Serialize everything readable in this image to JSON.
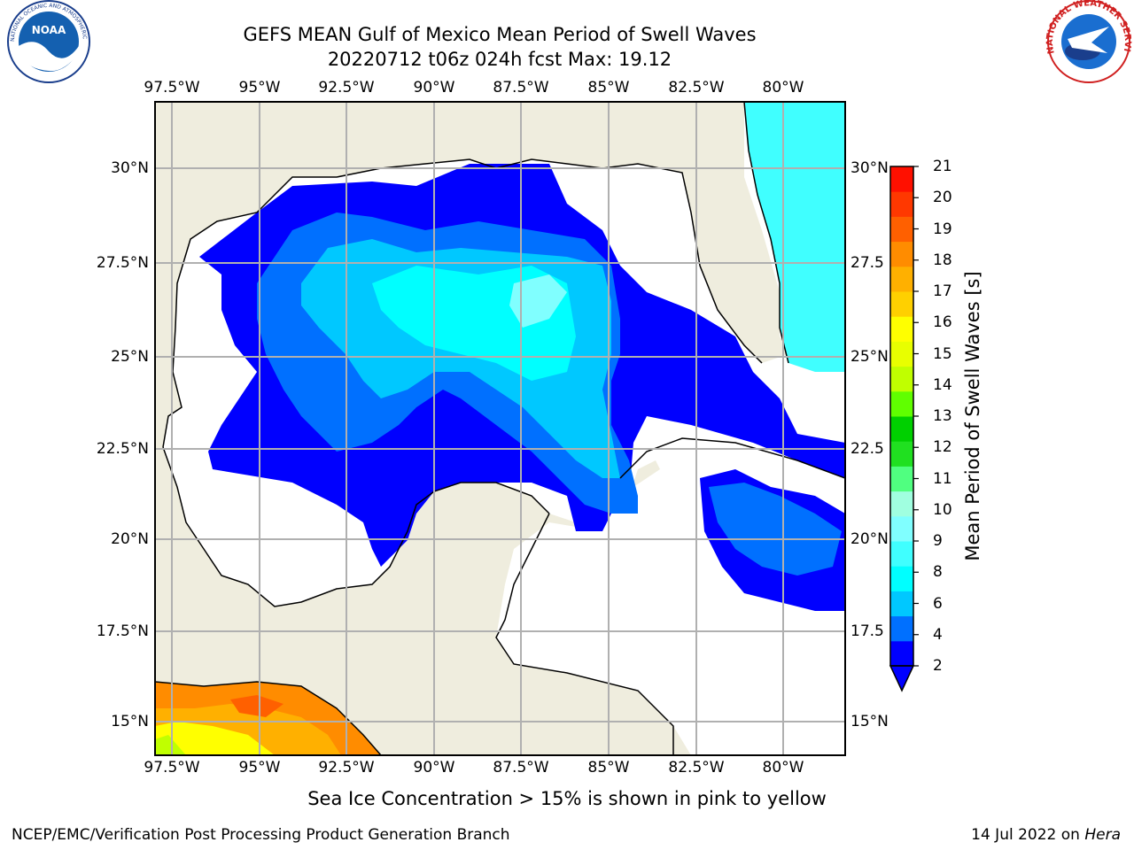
{
  "title": {
    "line1": "GEFS MEAN Gulf of Mexico Mean Period of Swell Waves",
    "line2": "20220712 t06z 024h fcst   Max: 19.12"
  },
  "map": {
    "lon_labels": [
      "97.5°W",
      "95°W",
      "92.5°W",
      "90°W",
      "87.5°W",
      "85°W",
      "82.5°W",
      "80°W"
    ],
    "lat_labels": [
      "30°N",
      "27.5°N",
      "25°N",
      "22.5°N",
      "20°N",
      "17.5°N",
      "15°N"
    ],
    "lat_labels_right": [
      "30°N",
      "27.5",
      "25°N",
      "22.5",
      "20°N",
      "17.5",
      "15°N"
    ],
    "land_color": "#efedde",
    "ocean_color": "#ffffff",
    "grid_color": "#b0b0b0"
  },
  "colorbar": {
    "title": "Mean Period of Swell Waves [s]",
    "ticks": [
      "21",
      "20",
      "19",
      "18",
      "17",
      "16",
      "15",
      "14",
      "13",
      "12",
      "11",
      "10",
      "9",
      "8",
      "6",
      "4",
      "2"
    ],
    "colors": [
      "#0000ff",
      "#0070ff",
      "#00c8ff",
      "#00ffff",
      "#40ffff",
      "#80ffff",
      "#a0ffe0",
      "#50ff80",
      "#20e020",
      "#00d000",
      "#60ff00",
      "#c0ff00",
      "#e8ff00",
      "#ffff00",
      "#ffd000",
      "#ffb000",
      "#ff8c00",
      "#ff6000",
      "#ff3800",
      "#ff1000"
    ]
  },
  "note": "Sea Ice Concentration > 15% is shown in pink to yellow",
  "footer": {
    "branch": "NCEP/EMC/Verification Post Processing Product Generation Branch",
    "date": "14 Jul 2022 on",
    "host": "Hera"
  },
  "logos": {
    "left": "noaa-logo",
    "right": "nws-logo",
    "left_text": "NOAA",
    "left_ring_text": "NATIONAL OCEANIC AND ATMOSPHERIC ADMINISTRATION · U.S. DEPARTMENT OF COMMERCE",
    "right_ring_text": "NATIONAL WEATHER SERVICE"
  }
}
